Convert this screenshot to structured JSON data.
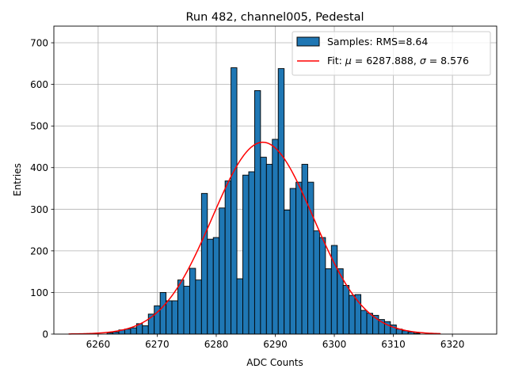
{
  "chart_data": {
    "type": "bar",
    "title": "Run 482, channel005, Pedestal",
    "xlabel": "ADC Counts",
    "ylabel": "Entries",
    "xlim": [
      6252.5,
      6327.5
    ],
    "ylim": [
      0,
      740
    ],
    "xticks": [
      6260,
      6270,
      6280,
      6290,
      6300,
      6310,
      6320
    ],
    "yticks": [
      0,
      100,
      200,
      300,
      400,
      500,
      600,
      700
    ],
    "grid": true,
    "legend_position": "top-right",
    "histogram": {
      "name": "Samples: RMS=8.64",
      "color": "#1f77b4",
      "edgecolor": "#000000",
      "bin_width": 1,
      "bin_centers": [
        6262,
        6263,
        6264,
        6265,
        6266,
        6267,
        6268,
        6269,
        6270,
        6271,
        6272,
        6273,
        6274,
        6275,
        6276,
        6277,
        6278,
        6279,
        6280,
        6281,
        6282,
        6283,
        6284,
        6285,
        6286,
        6287,
        6288,
        6289,
        6290,
        6291,
        6292,
        6293,
        6294,
        6295,
        6296,
        6297,
        6298,
        6299,
        6300,
        6301,
        6302,
        6303,
        6304,
        6305,
        6306,
        6307,
        6308,
        6309,
        6310,
        6311,
        6312,
        6313,
        6314
      ],
      "values": [
        3,
        5,
        10,
        12,
        15,
        25,
        20,
        48,
        68,
        100,
        80,
        80,
        130,
        115,
        158,
        130,
        338,
        228,
        232,
        303,
        368,
        640,
        133,
        382,
        390,
        585,
        425,
        408,
        468,
        638,
        298,
        350,
        365,
        408,
        365,
        248,
        232,
        157,
        213,
        157,
        117,
        93,
        95,
        57,
        50,
        45,
        35,
        30,
        22,
        12,
        8,
        5,
        2
      ]
    },
    "fit": {
      "name": "Fit: μ = 6287.888, σ = 8.576",
      "label_prefix": "Fit: ",
      "mu_symbol": "μ",
      "mu_text": " = 6287.888, ",
      "sigma_symbol": "σ",
      "sigma_text": " = 8.576",
      "color": "#ff0000",
      "mu": 6287.888,
      "sigma": 8.576,
      "amplitude": 461,
      "x_range": [
        6255,
        6318
      ]
    }
  }
}
